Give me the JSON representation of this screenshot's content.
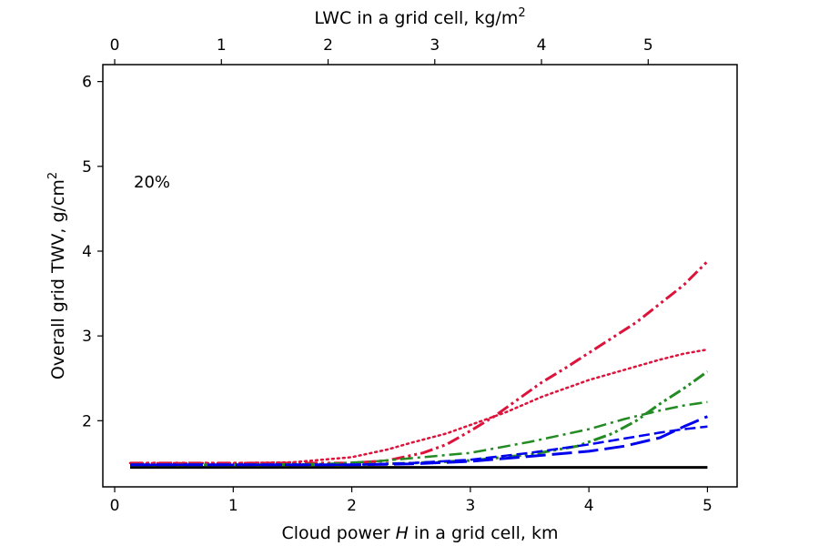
{
  "chart_data": {
    "type": "line",
    "title": "",
    "xlabel_prefix": "Cloud power ",
    "xlabel_italic": "H",
    "xlabel_suffix": " in a grid cell, km",
    "ylabel_main": "Overall grid TWV, g/cm",
    "ylabel_sup": "2",
    "top_xlabel_main": "LWC in a grid cell, kg/m",
    "top_xlabel_sup": "2",
    "annotation": "20%",
    "xlim": [
      -0.1,
      5.25
    ],
    "ylim": [
      1.22,
      6.2
    ],
    "x_ticks": [
      0,
      1,
      2,
      3,
      4,
      5
    ],
    "y_ticks": [
      2,
      3,
      4,
      5,
      6
    ],
    "top_x_ticks": [
      0,
      1,
      2,
      3,
      4,
      5
    ],
    "top_axis_scale_km_per_kgm2": 0.9,
    "grid": false,
    "series": [
      {
        "color": "#000000",
        "dash": "solid",
        "width": 3,
        "points": [
          [
            0.13,
            1.45
          ],
          [
            5.0,
            1.45
          ]
        ]
      },
      {
        "color": "#dc143c",
        "dash": "dashdotdot",
        "width": 3,
        "points": [
          [
            0.13,
            1.5
          ],
          [
            0.5,
            1.5
          ],
          [
            1.0,
            1.5
          ],
          [
            1.5,
            1.5
          ],
          [
            2.0,
            1.5
          ],
          [
            2.3,
            1.53
          ],
          [
            2.6,
            1.62
          ],
          [
            2.8,
            1.72
          ],
          [
            3.0,
            1.88
          ],
          [
            3.2,
            2.05
          ],
          [
            3.4,
            2.25
          ],
          [
            3.6,
            2.45
          ],
          [
            3.8,
            2.62
          ],
          [
            4.0,
            2.8
          ],
          [
            4.2,
            2.98
          ],
          [
            4.4,
            3.16
          ],
          [
            4.6,
            3.38
          ],
          [
            4.8,
            3.6
          ],
          [
            5.0,
            3.88
          ]
        ]
      },
      {
        "color": "#dc143c",
        "dash": "dotted",
        "width": 2.5,
        "points": [
          [
            0.13,
            1.5
          ],
          [
            0.5,
            1.5
          ],
          [
            1.0,
            1.5
          ],
          [
            1.5,
            1.51
          ],
          [
            2.0,
            1.57
          ],
          [
            2.3,
            1.66
          ],
          [
            2.5,
            1.74
          ],
          [
            2.8,
            1.85
          ],
          [
            3.0,
            1.95
          ],
          [
            3.3,
            2.1
          ],
          [
            3.6,
            2.28
          ],
          [
            4.0,
            2.48
          ],
          [
            4.3,
            2.6
          ],
          [
            4.6,
            2.72
          ],
          [
            4.8,
            2.79
          ],
          [
            5.0,
            2.84
          ]
        ]
      },
      {
        "color": "#228b22",
        "dash": "dashdotdot",
        "width": 3,
        "points": [
          [
            0.13,
            1.48
          ],
          [
            1.0,
            1.48
          ],
          [
            2.0,
            1.48
          ],
          [
            2.5,
            1.5
          ],
          [
            3.0,
            1.53
          ],
          [
            3.5,
            1.6
          ],
          [
            3.9,
            1.7
          ],
          [
            4.2,
            1.85
          ],
          [
            4.4,
            2.0
          ],
          [
            4.6,
            2.2
          ],
          [
            4.8,
            2.38
          ],
          [
            5.0,
            2.58
          ]
        ]
      },
      {
        "color": "#228b22",
        "dash": "dashdot",
        "width": 2.5,
        "points": [
          [
            0.13,
            1.48
          ],
          [
            1.0,
            1.48
          ],
          [
            1.8,
            1.49
          ],
          [
            2.2,
            1.52
          ],
          [
            2.6,
            1.57
          ],
          [
            3.0,
            1.62
          ],
          [
            3.5,
            1.75
          ],
          [
            4.0,
            1.9
          ],
          [
            4.3,
            2.02
          ],
          [
            4.6,
            2.12
          ],
          [
            4.8,
            2.18
          ],
          [
            5.0,
            2.22
          ]
        ]
      },
      {
        "color": "#0000ee",
        "dash": "longdash",
        "width": 3,
        "points": [
          [
            0.13,
            1.48
          ],
          [
            1.0,
            1.48
          ],
          [
            2.0,
            1.48
          ],
          [
            2.5,
            1.49
          ],
          [
            3.0,
            1.52
          ],
          [
            3.5,
            1.58
          ],
          [
            4.0,
            1.64
          ],
          [
            4.3,
            1.7
          ],
          [
            4.6,
            1.8
          ],
          [
            4.8,
            1.93
          ],
          [
            5.0,
            2.05
          ]
        ]
      },
      {
        "color": "#0000ee",
        "dash": "dashed",
        "width": 2.5,
        "points": [
          [
            0.13,
            1.48
          ],
          [
            1.0,
            1.48
          ],
          [
            2.0,
            1.48
          ],
          [
            2.5,
            1.5
          ],
          [
            3.0,
            1.54
          ],
          [
            3.5,
            1.62
          ],
          [
            4.0,
            1.72
          ],
          [
            4.3,
            1.79
          ],
          [
            4.6,
            1.86
          ],
          [
            4.8,
            1.9
          ],
          [
            5.0,
            1.93
          ]
        ]
      }
    ]
  }
}
